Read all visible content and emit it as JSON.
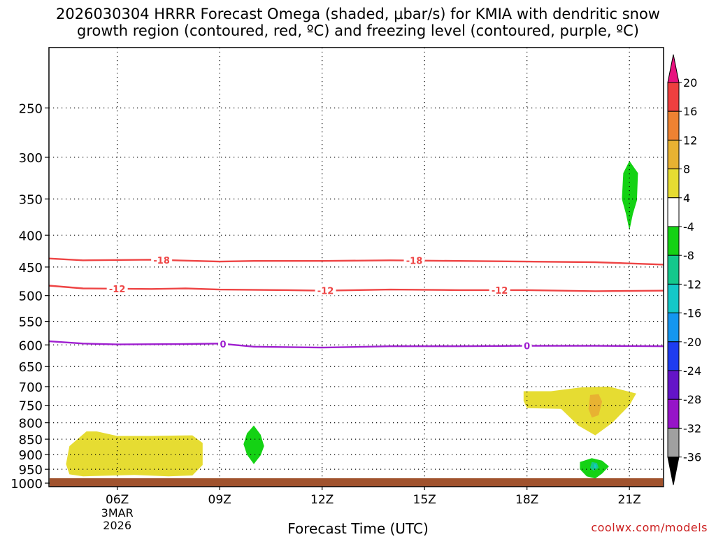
{
  "chart_data": {
    "type": "contour-time-height",
    "title": "2026030304 HRRR Forecast Omega (shaded, μbar/s) for KMIA with dendritic snow",
    "subtitle": "growth region (contoured, red, ºC) and freezing level (contoured, purple, ºC)",
    "xlabel": "Forecast Time (UTC)",
    "ylabel": "",
    "credit": "coolwx.com/models",
    "x_ticks": [
      {
        "hour": 6,
        "label": "06Z",
        "sub1": "3MAR",
        "sub2": "2026"
      },
      {
        "hour": 9,
        "label": "09Z",
        "sub1": "",
        "sub2": ""
      },
      {
        "hour": 12,
        "label": "12Z",
        "sub1": "",
        "sub2": ""
      },
      {
        "hour": 15,
        "label": "15Z",
        "sub1": "",
        "sub2": ""
      },
      {
        "hour": 18,
        "label": "18Z",
        "sub1": "",
        "sub2": ""
      },
      {
        "hour": 21,
        "label": "21Z",
        "sub1": "",
        "sub2": ""
      }
    ],
    "xlim": [
      4,
      22
    ],
    "y_ticks": [
      250,
      300,
      350,
      400,
      450,
      500,
      550,
      600,
      650,
      700,
      750,
      800,
      850,
      900,
      950,
      1000
    ],
    "ylim": [
      1013,
      200
    ],
    "y_scale": "log-pressure",
    "grid": true,
    "colorbar": {
      "labels": [
        20,
        16,
        12,
        8,
        4,
        -4,
        -8,
        -12,
        -16,
        -20,
        -24,
        -28,
        -32,
        -36
      ],
      "colors": {
        "over": "#e8117e",
        "b16_20": "#ee3f3f",
        "b12_16": "#ee8232",
        "b8_12": "#e8b232",
        "b4_8": "#e6dc32",
        "b-4_4": "#ffffff",
        "b-8_-4": "#14d214",
        "b-12_-8": "#14c88c",
        "b-16_-12": "#14c8c8",
        "b-20_-16": "#1496f0",
        "b-24_-20": "#1e3cf0",
        "b-28_-24": "#6414c8",
        "b-32_-28": "#9614c8",
        "b-36_-32": "#a0a0a0",
        "under": "#000000"
      }
    },
    "contours": [
      {
        "name": "-18",
        "color": "#ee4444",
        "points": [
          [
            4,
            436
          ],
          [
            5,
            439
          ],
          [
            7,
            438
          ],
          [
            9,
            441
          ],
          [
            10,
            440
          ],
          [
            12,
            440
          ],
          [
            14,
            439
          ],
          [
            16,
            440
          ],
          [
            18,
            441
          ],
          [
            20,
            442
          ],
          [
            22,
            446
          ]
        ],
        "labels": [
          {
            "hour": 7.3,
            "text": "-18"
          },
          {
            "hour": 14.7,
            "text": "-18"
          }
        ]
      },
      {
        "name": "-12",
        "color": "#ee4444",
        "points": [
          [
            4,
            482
          ],
          [
            5,
            487
          ],
          [
            7,
            488
          ],
          [
            8,
            487
          ],
          [
            9,
            489
          ],
          [
            11,
            490
          ],
          [
            12,
            491
          ],
          [
            14,
            489
          ],
          [
            16,
            490
          ],
          [
            17,
            490
          ],
          [
            18,
            490
          ],
          [
            20,
            492
          ],
          [
            22,
            491
          ]
        ],
        "labels": [
          {
            "hour": 6,
            "text": "-12"
          },
          {
            "hour": 12.1,
            "text": "-12"
          },
          {
            "hour": 17.2,
            "text": "-12"
          }
        ]
      },
      {
        "name": "0",
        "color": "#9f1fd0",
        "points": [
          [
            4,
            592
          ],
          [
            5,
            597
          ],
          [
            6,
            599
          ],
          [
            8,
            598
          ],
          [
            9,
            597
          ],
          [
            10,
            604
          ],
          [
            12,
            606
          ],
          [
            14,
            603
          ],
          [
            16,
            603
          ],
          [
            18,
            602
          ],
          [
            20,
            602
          ],
          [
            22,
            603
          ]
        ],
        "labels": [
          {
            "hour": 9.1,
            "text": "0"
          },
          {
            "hour": 18,
            "text": "0"
          }
        ]
      }
    ],
    "shaded_regions": [
      {
        "value_range": "4 to 8",
        "color": "#e6dc32",
        "points": [
          [
            4.6,
            872
          ],
          [
            5.1,
            826
          ],
          [
            5.4,
            826
          ],
          [
            6,
            840
          ],
          [
            7,
            840
          ],
          [
            8.2,
            838
          ],
          [
            8.5,
            862
          ],
          [
            8.5,
            935
          ],
          [
            8.2,
            972
          ],
          [
            7.5,
            975
          ],
          [
            6.5,
            970
          ],
          [
            5,
            975
          ],
          [
            4.6,
            968
          ],
          [
            4.5,
            932
          ]
        ]
      },
      {
        "value_range": "-8 to -4",
        "color": "#14d214",
        "points": [
          [
            10,
            808
          ],
          [
            10.2,
            836
          ],
          [
            10.3,
            872
          ],
          [
            10.2,
            902
          ],
          [
            10,
            932
          ],
          [
            9.8,
            900
          ],
          [
            9.7,
            866
          ],
          [
            9.8,
            832
          ]
        ]
      },
      {
        "value_range": "-8 to -4",
        "color": "#14d214",
        "points": [
          [
            21,
            304
          ],
          [
            21.25,
            318
          ],
          [
            21.22,
            352
          ],
          [
            21.1,
            370
          ],
          [
            21,
            393
          ],
          [
            20.9,
            370
          ],
          [
            20.78,
            350
          ],
          [
            20.82,
            318
          ]
        ]
      },
      {
        "value_range": "4 to 8",
        "color": "#e6dc32",
        "points": [
          [
            17.9,
            712
          ],
          [
            18.7,
            712
          ],
          [
            19.6,
            702
          ],
          [
            20.4,
            700
          ],
          [
            21.2,
            718
          ],
          [
            21,
            750
          ],
          [
            20.5,
            800
          ],
          [
            20,
            838
          ],
          [
            19.5,
            808
          ],
          [
            19,
            760
          ],
          [
            18,
            758
          ],
          [
            17.9,
            738
          ]
        ]
      },
      {
        "value_range": "8 to 12",
        "color": "#e8b232",
        "points": [
          [
            19.85,
            722
          ],
          [
            20.1,
            720
          ],
          [
            20.2,
            740
          ],
          [
            20.1,
            778
          ],
          [
            19.9,
            785
          ],
          [
            19.8,
            760
          ]
        ]
      },
      {
        "value_range": "-8 to -4",
        "color": "#14d214",
        "points": [
          [
            19.55,
            925
          ],
          [
            19.9,
            912
          ],
          [
            20.2,
            920
          ],
          [
            20.4,
            940
          ],
          [
            20.2,
            965
          ],
          [
            20,
            983
          ],
          [
            19.75,
            975
          ],
          [
            19.55,
            950
          ]
        ]
      },
      {
        "value_range": "-12 to -8",
        "color": "#14c88c",
        "points": [
          [
            19.9,
            925
          ],
          [
            20.05,
            928
          ],
          [
            20.1,
            945
          ],
          [
            19.95,
            955
          ],
          [
            19.85,
            945
          ]
        ]
      },
      {
        "value_range": "-16 to -12",
        "color": "#14c8c8",
        "points": [
          [
            19.97,
            932
          ],
          [
            20.03,
            934
          ],
          [
            20.03,
            945
          ],
          [
            19.97,
            945
          ]
        ]
      }
    ],
    "terrain": {
      "color": "#a0522d",
      "top_pressure": 1013
    }
  }
}
